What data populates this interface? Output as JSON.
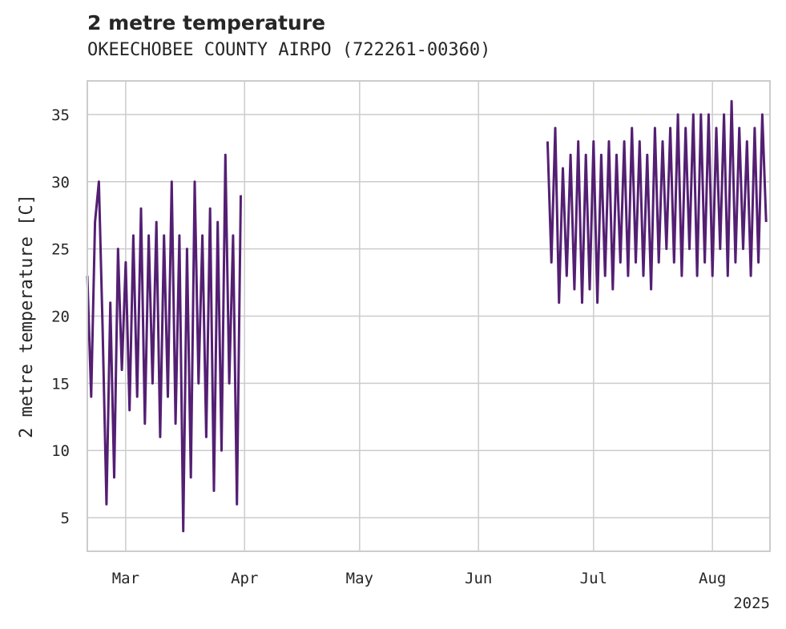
{
  "chart_data": {
    "type": "line",
    "title": "2 metre temperature",
    "subtitle": "OKEECHOBEE COUNTY AIRPO (722261-00360)",
    "xlabel": "",
    "ylabel": "2 metre temperature [C]",
    "x_axis_type": "date",
    "xlim": [
      "2025-02-19",
      "2025-08-16"
    ],
    "ylim": [
      2.5,
      37.5
    ],
    "x_ticks": [
      {
        "date": "2025-03-01",
        "label": "Mar"
      },
      {
        "date": "2025-04-01",
        "label": "Apr"
      },
      {
        "date": "2025-05-01",
        "label": "May"
      },
      {
        "date": "2025-06-01",
        "label": "Jun"
      },
      {
        "date": "2025-07-01",
        "label": "Jul"
      },
      {
        "date": "2025-08-01",
        "label": "Aug"
      }
    ],
    "x_offset_label": "2025",
    "y_ticks": [
      5,
      10,
      15,
      20,
      25,
      30,
      35
    ],
    "grid": true,
    "line_color": "#541f73",
    "series": [
      {
        "segments": [
          {
            "start": "2025-02-19",
            "end": "2025-03-31",
            "points": [
              [
                "2025-02-19",
                23
              ],
              [
                "2025-02-20",
                14
              ],
              [
                "2025-02-21",
                27
              ],
              [
                "2025-02-22",
                30
              ],
              [
                "2025-02-23",
                19
              ],
              [
                "2025-02-24",
                6
              ],
              [
                "2025-02-25",
                21
              ],
              [
                "2025-02-26",
                8
              ],
              [
                "2025-02-27",
                25
              ],
              [
                "2025-02-28",
                16
              ],
              [
                "2025-03-01",
                24
              ],
              [
                "2025-03-02",
                13
              ],
              [
                "2025-03-03",
                26
              ],
              [
                "2025-03-04",
                14
              ],
              [
                "2025-03-05",
                28
              ],
              [
                "2025-03-06",
                12
              ],
              [
                "2025-03-07",
                26
              ],
              [
                "2025-03-08",
                15
              ],
              [
                "2025-03-09",
                27
              ],
              [
                "2025-03-10",
                11
              ],
              [
                "2025-03-11",
                26
              ],
              [
                "2025-03-12",
                14
              ],
              [
                "2025-03-13",
                30
              ],
              [
                "2025-03-14",
                12
              ],
              [
                "2025-03-15",
                26
              ],
              [
                "2025-03-16",
                4
              ],
              [
                "2025-03-17",
                25
              ],
              [
                "2025-03-18",
                8
              ],
              [
                "2025-03-19",
                30
              ],
              [
                "2025-03-20",
                15
              ],
              [
                "2025-03-21",
                26
              ],
              [
                "2025-03-22",
                11
              ],
              [
                "2025-03-23",
                28
              ],
              [
                "2025-03-24",
                7
              ],
              [
                "2025-03-25",
                27
              ],
              [
                "2025-03-26",
                10
              ],
              [
                "2025-03-27",
                32
              ],
              [
                "2025-03-28",
                15
              ],
              [
                "2025-03-29",
                26
              ],
              [
                "2025-03-30",
                6
              ],
              [
                "2025-03-31",
                29
              ]
            ]
          }
        ],
        "segments_2": [
          {
            "start": "2025-06-19",
            "end": "2025-08-15",
            "points": [
              [
                "2025-06-19",
                33
              ],
              [
                "2025-06-20",
                24
              ],
              [
                "2025-06-21",
                34
              ],
              [
                "2025-06-22",
                21
              ],
              [
                "2025-06-23",
                31
              ],
              [
                "2025-06-24",
                23
              ],
              [
                "2025-06-25",
                32
              ],
              [
                "2025-06-26",
                22
              ],
              [
                "2025-06-27",
                33
              ],
              [
                "2025-06-28",
                21
              ],
              [
                "2025-06-29",
                32
              ],
              [
                "2025-06-30",
                22
              ],
              [
                "2025-07-01",
                33
              ],
              [
                "2025-07-02",
                21
              ],
              [
                "2025-07-03",
                32
              ],
              [
                "2025-07-04",
                23
              ],
              [
                "2025-07-05",
                33
              ],
              [
                "2025-07-06",
                22
              ],
              [
                "2025-07-07",
                32
              ],
              [
                "2025-07-08",
                24
              ],
              [
                "2025-07-09",
                33
              ],
              [
                "2025-07-10",
                23
              ],
              [
                "2025-07-11",
                34
              ],
              [
                "2025-07-12",
                24
              ],
              [
                "2025-07-13",
                33
              ],
              [
                "2025-07-14",
                23
              ],
              [
                "2025-07-15",
                32
              ],
              [
                "2025-07-16",
                22
              ],
              [
                "2025-07-17",
                34
              ],
              [
                "2025-07-18",
                24
              ],
              [
                "2025-07-19",
                33
              ],
              [
                "2025-07-20",
                25
              ],
              [
                "2025-07-21",
                34
              ],
              [
                "2025-07-22",
                24
              ],
              [
                "2025-07-23",
                35
              ],
              [
                "2025-07-24",
                23
              ],
              [
                "2025-07-25",
                34
              ],
              [
                "2025-07-26",
                25
              ],
              [
                "2025-07-27",
                35
              ],
              [
                "2025-07-28",
                23
              ],
              [
                "2025-07-29",
                35
              ],
              [
                "2025-07-30",
                24
              ],
              [
                "2025-07-31",
                35
              ],
              [
                "2025-08-01",
                23
              ],
              [
                "2025-08-02",
                34
              ],
              [
                "2025-08-03",
                25
              ],
              [
                "2025-08-04",
                35
              ],
              [
                "2025-08-05",
                23
              ],
              [
                "2025-08-06",
                36
              ],
              [
                "2025-08-07",
                24
              ],
              [
                "2025-08-08",
                34
              ],
              [
                "2025-08-09",
                25
              ],
              [
                "2025-08-10",
                33
              ],
              [
                "2025-08-11",
                23
              ],
              [
                "2025-08-12",
                34
              ],
              [
                "2025-08-13",
                24
              ],
              [
                "2025-08-14",
                35
              ],
              [
                "2025-08-15",
                27
              ]
            ]
          }
        ]
      }
    ]
  }
}
